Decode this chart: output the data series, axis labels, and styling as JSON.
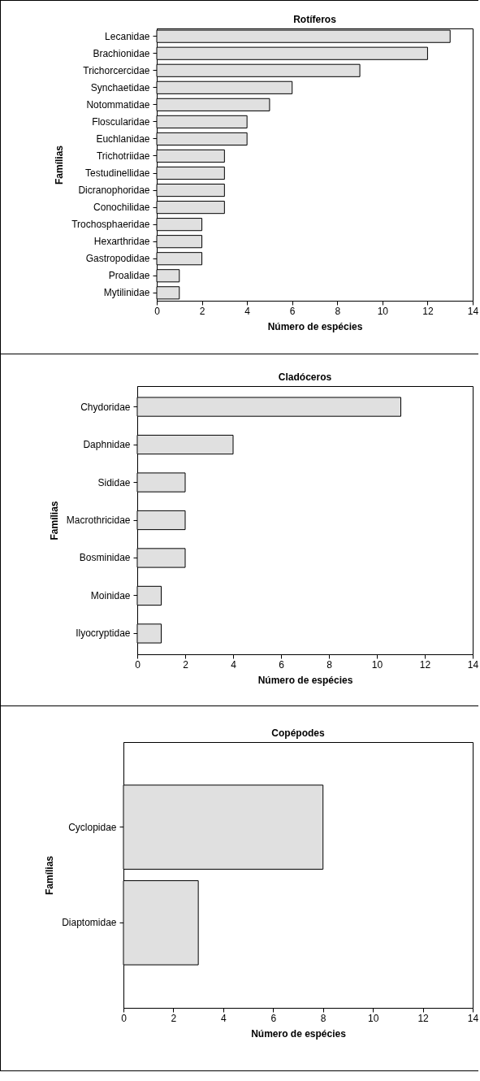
{
  "chart_data": [
    {
      "type": "bar",
      "orientation": "horizontal",
      "title": "Rotíferos",
      "xlabel": "Número de espécies",
      "ylabel": "Famílias",
      "categories": [
        "Lecanidae",
        "Brachionidae",
        "Trichorcercidae",
        "Synchaetidae",
        "Notommatidae",
        "Floscularidae",
        "Euchlanidae",
        "Trichotriidae",
        "Testudinellidae",
        "Dicranophoridae",
        "Conochilidae",
        "Trochosphaeridae",
        "Hexarthridae",
        "Gastropodidae",
        "Proalidae",
        "Mytilinidae"
      ],
      "values": [
        13,
        12,
        9,
        6,
        5,
        4,
        4,
        3,
        3,
        3,
        3,
        2,
        2,
        2,
        1,
        1
      ],
      "color": "#e0e0e0",
      "xlim": [
        0,
        14
      ],
      "xticks": [
        0,
        2,
        4,
        6,
        8,
        10,
        12,
        14
      ],
      "grid": false
    },
    {
      "type": "bar",
      "orientation": "horizontal",
      "title": "Cladóceros",
      "xlabel": "Número de espécies",
      "ylabel": "Famílias",
      "categories": [
        "Chydoridae",
        "Daphnidae",
        "Sididae",
        "Macrothricidae",
        "Bosminidae",
        "Moinidae",
        "Ilyocryptidae"
      ],
      "values": [
        11,
        4,
        2,
        2,
        2,
        1,
        1
      ],
      "color": "#e0e0e0",
      "xlim": [
        0,
        14
      ],
      "xticks": [
        0,
        2,
        4,
        6,
        8,
        10,
        12,
        14
      ],
      "grid": false
    },
    {
      "type": "bar",
      "orientation": "horizontal",
      "title": "Copépodes",
      "xlabel": "Número de espécies",
      "ylabel": "Famílias",
      "categories": [
        "Cyclopidae",
        "Diaptomidae"
      ],
      "values": [
        8,
        3
      ],
      "color": "#e0e0e0",
      "xlim": [
        0,
        14
      ],
      "xticks": [
        0,
        2,
        4,
        6,
        8,
        10,
        12,
        14
      ],
      "grid": false
    }
  ]
}
